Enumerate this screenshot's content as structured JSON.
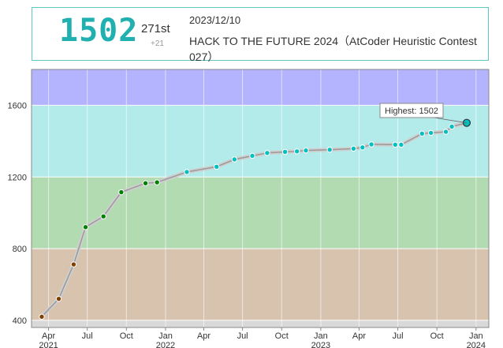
{
  "header": {
    "rating": "1502",
    "rank": "271st",
    "delta": "+21",
    "date": "2023/12/10",
    "contest": "HACK TO THE FUTURE 2024（AtCoder Heuristic Contest 027）"
  },
  "chart_data": {
    "type": "line",
    "title": "",
    "xlabel": "",
    "ylabel": "",
    "ylim": [
      360,
      1800
    ],
    "xlim": [
      "2021-02-20",
      "2024-01-31"
    ],
    "y_ticks": [
      400,
      800,
      1200,
      1600
    ],
    "x_ticks": [
      {
        "date": "2021-04-01",
        "label": "Apr",
        "sub": "2021"
      },
      {
        "date": "2021-07-01",
        "label": "Jul",
        "sub": ""
      },
      {
        "date": "2021-10-01",
        "label": "Oct",
        "sub": ""
      },
      {
        "date": "2022-01-01",
        "label": "Jan",
        "sub": "2022"
      },
      {
        "date": "2022-04-01",
        "label": "Apr",
        "sub": ""
      },
      {
        "date": "2022-07-01",
        "label": "Jul",
        "sub": ""
      },
      {
        "date": "2022-10-01",
        "label": "Oct",
        "sub": ""
      },
      {
        "date": "2023-01-01",
        "label": "Jan",
        "sub": "2023"
      },
      {
        "date": "2023-04-01",
        "label": "Apr",
        "sub": ""
      },
      {
        "date": "2023-07-01",
        "label": "Jul",
        "sub": ""
      },
      {
        "date": "2023-10-01",
        "label": "Oct",
        "sub": ""
      },
      {
        "date": "2024-01-01",
        "label": "Jan",
        "sub": "2024"
      }
    ],
    "bands": [
      {
        "from": 0,
        "to": 400,
        "color": "#d9d9d9"
      },
      {
        "from": 400,
        "to": 800,
        "color": "#d8c3ae"
      },
      {
        "from": 800,
        "to": 1200,
        "color": "#b3dbb2"
      },
      {
        "from": 1200,
        "to": 1600,
        "color": "#b3ebeb"
      },
      {
        "from": 1600,
        "to": 2000,
        "color": "#b3b3fe"
      }
    ],
    "point_colors": {
      "brown": "#804000",
      "green": "#008000",
      "cyan": "#00c0c0"
    },
    "points": [
      {
        "date": "2021-03-16",
        "value": 420
      },
      {
        "date": "2021-04-25",
        "value": 520
      },
      {
        "date": "2021-05-30",
        "value": 712
      },
      {
        "date": "2021-06-27",
        "value": 920
      },
      {
        "date": "2021-08-08",
        "value": 980
      },
      {
        "date": "2021-09-19",
        "value": 1115
      },
      {
        "date": "2021-11-15",
        "value": 1165
      },
      {
        "date": "2021-12-12",
        "value": 1170
      },
      {
        "date": "2022-02-20",
        "value": 1228
      },
      {
        "date": "2022-05-01",
        "value": 1257
      },
      {
        "date": "2022-06-12",
        "value": 1298
      },
      {
        "date": "2022-07-24",
        "value": 1318
      },
      {
        "date": "2022-08-28",
        "value": 1334
      },
      {
        "date": "2022-10-09",
        "value": 1340
      },
      {
        "date": "2022-11-06",
        "value": 1343
      },
      {
        "date": "2022-11-27",
        "value": 1348
      },
      {
        "date": "2023-01-22",
        "value": 1352
      },
      {
        "date": "2023-03-19",
        "value": 1358
      },
      {
        "date": "2023-04-09",
        "value": 1365
      },
      {
        "date": "2023-04-30",
        "value": 1382
      },
      {
        "date": "2023-06-25",
        "value": 1380
      },
      {
        "date": "2023-07-09",
        "value": 1380
      },
      {
        "date": "2023-08-27",
        "value": 1442
      },
      {
        "date": "2023-09-17",
        "value": 1446
      },
      {
        "date": "2023-10-22",
        "value": 1452
      },
      {
        "date": "2023-11-05",
        "value": 1481
      },
      {
        "date": "2023-12-10",
        "value": 1502
      }
    ],
    "highlight": {
      "date": "2023-12-10",
      "value": 1502,
      "label": "Highest: 1502"
    }
  }
}
